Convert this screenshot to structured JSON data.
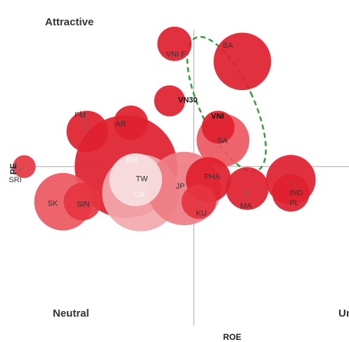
{
  "chart_data": {
    "type": "scatter",
    "subtype": "bubble",
    "xlabel": "ROE",
    "ylabel": "PE",
    "quadrant_labels": {
      "top_left": "Attractive",
      "bottom_left": "Neutral",
      "bottom_right": "Un"
    },
    "points": [
      {
        "label": "EM",
        "x": -1.4,
        "y": 0.0,
        "size": 1.0,
        "color": "#e0202e",
        "label_style": "inside-bold"
      },
      {
        "label": "CN",
        "x": -1.1,
        "y": -0.6,
        "size": 0.55,
        "color": "#f3a8ad",
        "label_style": "inside"
      },
      {
        "label": "TW",
        "x": -1.2,
        "y": -0.3,
        "size": 0.25,
        "color": "#f7dfe1",
        "label_style": "plain"
      },
      {
        "label": "JP",
        "x": -0.2,
        "y": -0.5,
        "size": 0.5,
        "color": "#ee7c84",
        "label_style": "plain"
      },
      {
        "label": "KU",
        "x": 0.1,
        "y": -0.8,
        "size": 0.1,
        "color": "#e53541",
        "label_style": "plain"
      },
      {
        "label": "SK",
        "x": -2.7,
        "y": -0.8,
        "size": 0.3,
        "color": "#ec5760",
        "label_style": "plain"
      },
      {
        "label": "SIN",
        "x": -2.3,
        "y": -0.8,
        "size": 0.12,
        "color": "#e53541",
        "label_style": "plain"
      },
      {
        "label": "SRI",
        "x": -3.5,
        "y": 0.0,
        "size": 0.04,
        "color": "#e53541",
        "label_style": "plain"
      },
      {
        "label": "FM",
        "x": -2.2,
        "y": 0.8,
        "size": 0.15,
        "color": "#e0202e",
        "label_style": "plain"
      },
      {
        "label": "AR",
        "x": -1.3,
        "y": 1.0,
        "size": 0.1,
        "color": "#e0202e",
        "label_style": "plain"
      },
      {
        "label": "PHA",
        "x": 0.3,
        "y": -0.3,
        "size": 0.18,
        "color": "#e0202e",
        "label_style": "plain"
      },
      {
        "label": "SA",
        "x": 0.6,
        "y": 0.6,
        "size": 0.25,
        "color": "#ec5760",
        "label_style": "plain"
      },
      {
        "label": "VNI",
        "x": 0.5,
        "y": 0.9,
        "size": 0.09,
        "color": "#e0202e",
        "label_style": "bold"
      },
      {
        "label": "VN30",
        "x": -0.5,
        "y": 1.5,
        "size": 0.08,
        "color": "#e0202e",
        "label_style": "bold"
      },
      {
        "label": "VNI F",
        "x": -0.4,
        "y": 2.8,
        "size": 0.1,
        "color": "#e0202e",
        "label_style": "plain"
      },
      {
        "label": "BA",
        "x": 1.0,
        "y": 2.4,
        "size": 0.3,
        "color": "#e0202e",
        "label_style": "plain"
      },
      {
        "label": "MA",
        "x": 1.1,
        "y": -0.5,
        "size": 0.16,
        "color": "#e0202e",
        "label_style": "plain"
      },
      {
        "label": "IND",
        "x": 2.0,
        "y": -0.3,
        "size": 0.22,
        "color": "#e0202e",
        "label_style": "plain"
      },
      {
        "label": "PL",
        "x": 2.0,
        "y": -0.6,
        "size": 0.12,
        "color": "#e0202e",
        "label_style": "plain"
      }
    ],
    "highlight": {
      "style": "dashed-ellipse",
      "color": "#2e9e3a",
      "members": [
        "VNI F",
        "VN30",
        "VNI"
      ]
    },
    "grid": false,
    "xlim": [
      -4.0,
      3.2
    ],
    "ylim": [
      -4.0,
      3.8
    ]
  }
}
